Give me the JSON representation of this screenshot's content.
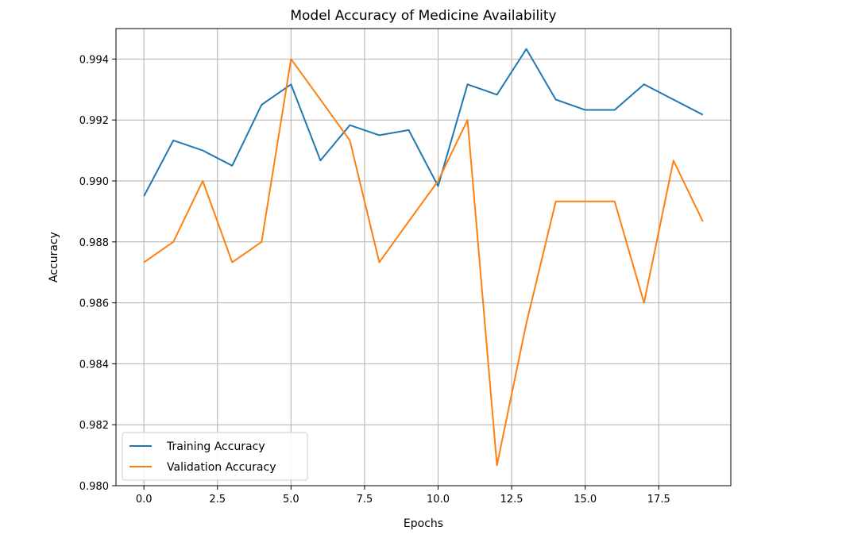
{
  "chart_data": {
    "type": "line",
    "title": "Model Accuracy of Medicine Availability",
    "xlabel": "Epochs",
    "ylabel": "Accuracy",
    "xlim": [
      -0.95,
      19.95
    ],
    "ylim": [
      0.98,
      0.995
    ],
    "xticks": [
      0,
      2.5,
      5,
      7.5,
      10,
      12.5,
      15,
      17.5
    ],
    "xtick_labels": [
      "0.0",
      "2.5",
      "5.0",
      "7.5",
      "10.0",
      "12.5",
      "15.0",
      "17.5"
    ],
    "yticks": [
      0.98,
      0.982,
      0.984,
      0.986,
      0.988,
      0.99,
      0.992,
      0.994
    ],
    "ytick_labels": [
      "0.980",
      "0.982",
      "0.984",
      "0.986",
      "0.988",
      "0.990",
      "0.992",
      "0.994"
    ],
    "grid": true,
    "legend_position": "lower-left",
    "x": [
      0,
      1,
      2,
      3,
      4,
      5,
      6,
      7,
      8,
      9,
      10,
      11,
      12,
      13,
      14,
      15,
      16,
      17,
      18,
      19
    ],
    "series": [
      {
        "name": "Training Accuracy",
        "color": "#1f77b4",
        "values": [
          0.9895,
          0.99133,
          0.991,
          0.9905,
          0.9925,
          0.99317,
          0.99067,
          0.99183,
          0.9915,
          0.99167,
          0.98983,
          0.99317,
          0.99283,
          0.99433,
          0.99267,
          0.99233,
          0.99233,
          0.99317,
          0.99267,
          0.99217
        ]
      },
      {
        "name": "Validation Accuracy",
        "color": "#ff7f0e",
        "values": [
          0.98733,
          0.988,
          0.99,
          0.98733,
          0.988,
          0.994,
          0.99267,
          0.99133,
          0.98733,
          0.98867,
          0.99,
          0.992,
          0.98067,
          0.98533,
          0.98933,
          0.98933,
          0.98933,
          0.986,
          0.99067,
          0.98867
        ]
      }
    ]
  }
}
